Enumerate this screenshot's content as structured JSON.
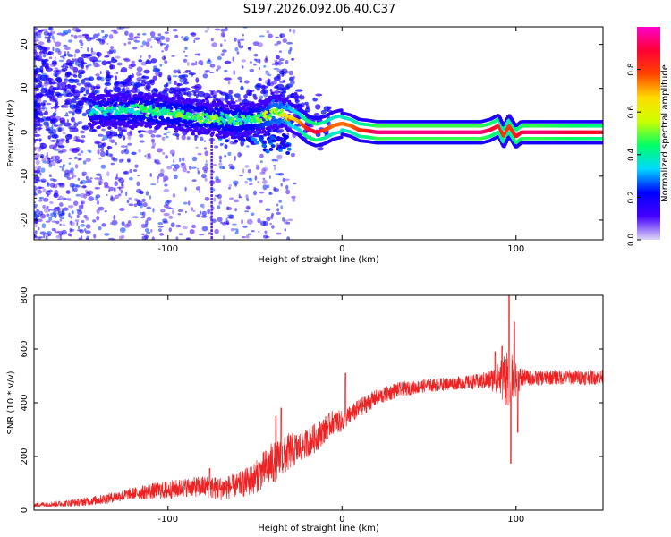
{
  "title": "S197.2026.092.06.40.C37",
  "colors": {
    "background": "#ffffff",
    "axes": "#000000",
    "snr_line": "#ee2222"
  },
  "chart_data": [
    {
      "type": "heatmap",
      "title": "S197.2026.092.06.40.C37",
      "xlabel": "Height of straight line (km)",
      "ylabel": "Frequency (Hz)",
      "xlim": [
        -177,
        150
      ],
      "ylim": [
        -24.5,
        24
      ],
      "x_ticks": [
        -100,
        0,
        100
      ],
      "y_ticks": [
        -20,
        -10,
        0,
        10,
        20
      ],
      "x_tick_labels": [
        "-100",
        "0",
        "100"
      ],
      "y_tick_labels": [
        "-20",
        "-10",
        "0",
        "10",
        "20"
      ],
      "colorbar": {
        "label": "Normalized spectral amplitude",
        "range": [
          0,
          1
        ],
        "ticks": [
          0.0,
          0.2,
          0.4,
          0.6,
          0.8
        ],
        "tick_labels": [
          "0.0",
          "0.2",
          "0.4",
          "0.6",
          "0.8"
        ],
        "colormap": [
          "#e0d8f4",
          "#4400ff",
          "#0000ff",
          "#00d8ff",
          "#00ff66",
          "#ccff00",
          "#ffdd00",
          "#ff4400",
          "#ff0033",
          "#ff00cc"
        ]
      },
      "ridge_centerline": {
        "x": [
          -140,
          -130,
          -120,
          -110,
          -100,
          -90,
          -80,
          -70,
          -60,
          -50,
          -45,
          -40,
          -35,
          -30,
          -25,
          -20,
          -15,
          -10,
          -5,
          0,
          5,
          10,
          15,
          20,
          40,
          60,
          80,
          85,
          90,
          93,
          96,
          100,
          103,
          110,
          130,
          150
        ],
        "y": [
          5,
          5,
          5,
          5,
          4.5,
          4,
          3.5,
          3,
          2.8,
          3,
          3.5,
          4.5,
          4.5,
          3.5,
          2.5,
          0.8,
          0,
          0.5,
          1.5,
          2,
          1.5,
          0.5,
          0.3,
          0,
          0,
          0,
          0,
          0.5,
          1.5,
          -1,
          1.5,
          -1,
          0,
          0,
          0,
          0
        ],
        "peak_amplitude": [
          0.35,
          0.4,
          0.4,
          0.45,
          0.45,
          0.45,
          0.45,
          0.45,
          0.4,
          0.45,
          0.5,
          0.55,
          0.55,
          0.65,
          0.7,
          0.85,
          0.9,
          0.8,
          0.75,
          0.75,
          0.75,
          0.8,
          0.85,
          0.95,
          0.95,
          0.95,
          0.95,
          0.9,
          0.85,
          0.8,
          0.8,
          0.85,
          0.9,
          0.95,
          0.9,
          0.85
        ]
      }
    },
    {
      "type": "line",
      "xlabel": "Height of straight line (km)",
      "ylabel": "SNR (10 * v/v)",
      "xlim": [
        -177,
        150
      ],
      "ylim": [
        0,
        800
      ],
      "x_ticks": [
        -100,
        0,
        100
      ],
      "y_ticks": [
        0,
        200,
        400,
        600,
        800
      ],
      "x_tick_labels": [
        "-100",
        "0",
        "100"
      ],
      "y_tick_labels": [
        "0",
        "200",
        "400",
        "600",
        "800"
      ],
      "series": [
        {
          "name": "SNR",
          "x": [
            -177,
            -160,
            -150,
            -140,
            -130,
            -120,
            -110,
            -100,
            -90,
            -80,
            -70,
            -60,
            -55,
            -50,
            -45,
            -40,
            -35,
            -30,
            -25,
            -20,
            -15,
            -10,
            -5,
            0,
            5,
            10,
            15,
            20,
            25,
            30,
            40,
            50,
            60,
            70,
            80,
            85,
            90,
            95,
            100,
            105,
            110,
            120,
            130,
            140,
            150
          ],
          "mean": [
            20,
            25,
            30,
            38,
            50,
            62,
            70,
            75,
            85,
            88,
            80,
            92,
            105,
            120,
            150,
            175,
            190,
            220,
            230,
            250,
            270,
            300,
            330,
            330,
            355,
            380,
            400,
            420,
            430,
            445,
            455,
            465,
            470,
            475,
            480,
            485,
            490,
            500,
            485,
            495,
            490,
            495,
            495,
            495,
            495
          ],
          "noise": [
            8,
            12,
            15,
            18,
            20,
            22,
            30,
            35,
            35,
            40,
            45,
            45,
            55,
            60,
            70,
            80,
            75,
            70,
            60,
            55,
            55,
            50,
            45,
            40,
            35,
            35,
            35,
            30,
            30,
            30,
            25,
            25,
            25,
            25,
            30,
            40,
            60,
            120,
            60,
            30,
            28,
            28,
            28,
            28,
            28
          ],
          "spikes": [
            {
              "x": -76,
              "y": 155
            },
            {
              "x": -38,
              "y": 350
            },
            {
              "x": -35,
              "y": 380
            },
            {
              "x": 2,
              "y": 510
            },
            {
              "x": 88,
              "y": 590
            },
            {
              "x": 92,
              "y": 610
            },
            {
              "x": 96,
              "y": 800
            },
            {
              "x": 97,
              "y": 175
            },
            {
              "x": 99,
              "y": 700
            },
            {
              "x": 101,
              "y": 290
            }
          ]
        }
      ]
    }
  ]
}
